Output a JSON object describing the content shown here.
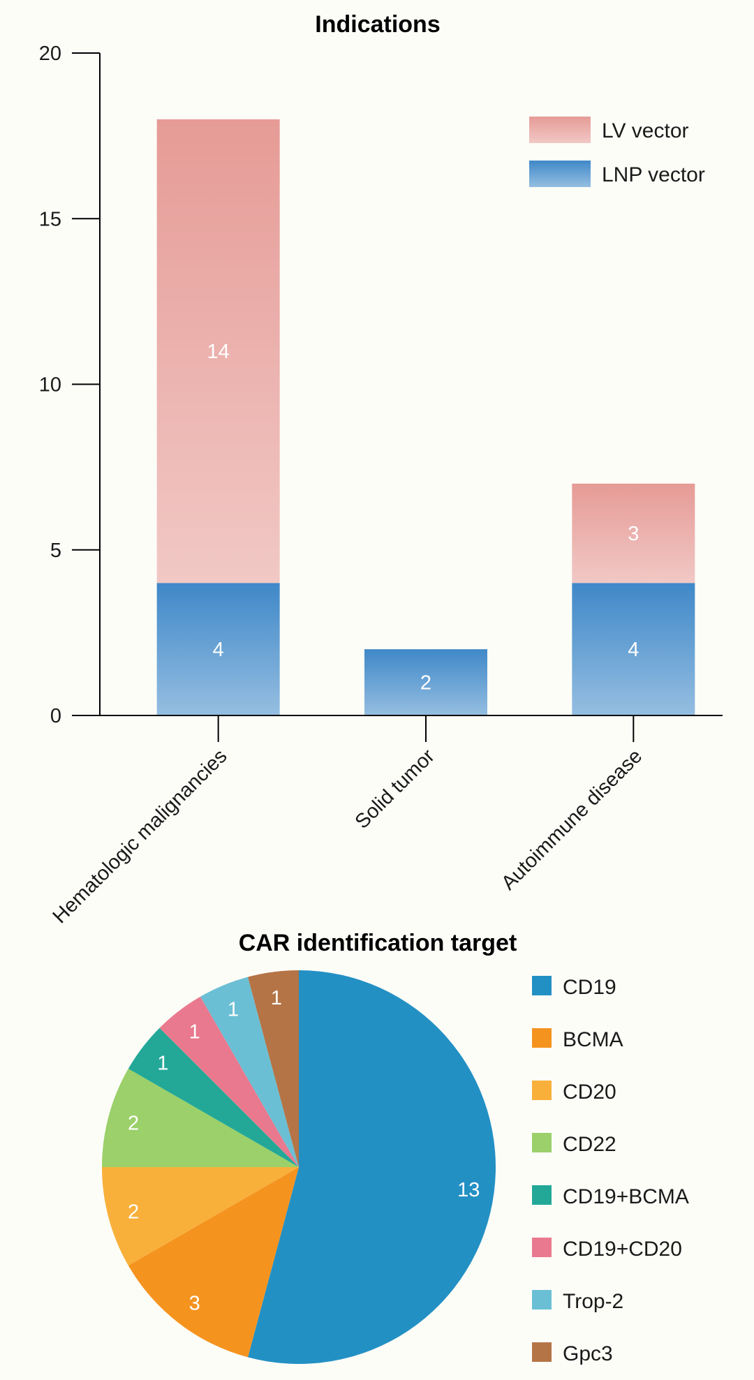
{
  "chart_data": [
    {
      "type": "bar",
      "stacked": true,
      "title": "Indications",
      "categories": [
        "Hematologic malignancies",
        "Solid tumor",
        "Autoimmune disease"
      ],
      "series": [
        {
          "name": "LNP vector",
          "values": [
            4,
            2,
            4
          ],
          "color": "#3f88c8"
        },
        {
          "name": "LV vector",
          "values": [
            14,
            0,
            3
          ],
          "color": "#e69b96"
        }
      ],
      "yticks": [
        0,
        5,
        10,
        15,
        20
      ],
      "ylim": [
        0,
        20
      ],
      "legend_position": "top-right",
      "grid": false
    },
    {
      "type": "pie",
      "title": "CAR identification target",
      "labels": [
        "CD19",
        "BCMA",
        "CD20",
        "CD22",
        "CD19+BCMA",
        "CD19+CD20",
        "Trop-2",
        "Gpc3"
      ],
      "values": [
        13,
        3,
        2,
        2,
        1,
        1,
        1,
        1
      ],
      "colors": [
        "#2390c4",
        "#f5931f",
        "#f8b03b",
        "#9bd06a",
        "#23a898",
        "#e9798e",
        "#6bbfd4",
        "#b57446"
      ],
      "legend_position": "right"
    }
  ]
}
